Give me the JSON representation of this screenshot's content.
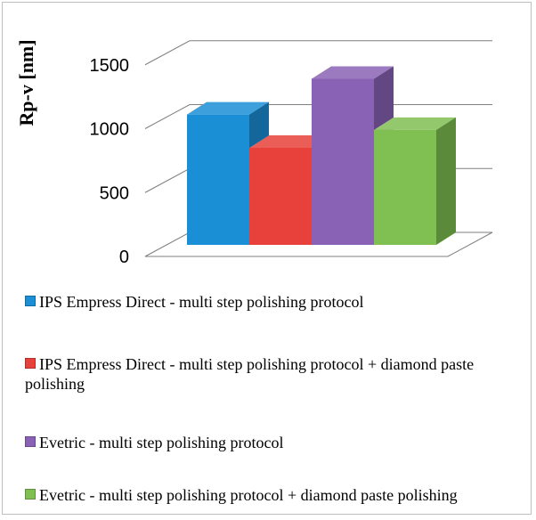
{
  "chart_data": {
    "type": "bar",
    "ylabel": "Rp-v [nm]",
    "ylim": [
      0,
      1500
    ],
    "yticks": [
      0,
      500,
      1000,
      1500
    ],
    "grid": true,
    "legend_position": "bottom",
    "series": [
      {
        "name": "IPS Empress Direct - multi step polishing protocol",
        "value": 1020,
        "color": "#1b8fd6"
      },
      {
        "name": "IPS Empress Direct - multi step polishing protocol + diamond paste polishing",
        "value": 760,
        "color": "#e8413b"
      },
      {
        "name": "Evetric - multi step polishing protocol",
        "value": 1300,
        "color": "#8a62b5"
      },
      {
        "name": "Evetric - multi step polishing protocol + diamond paste polishing",
        "value": 900,
        "color": "#80c052"
      }
    ]
  }
}
